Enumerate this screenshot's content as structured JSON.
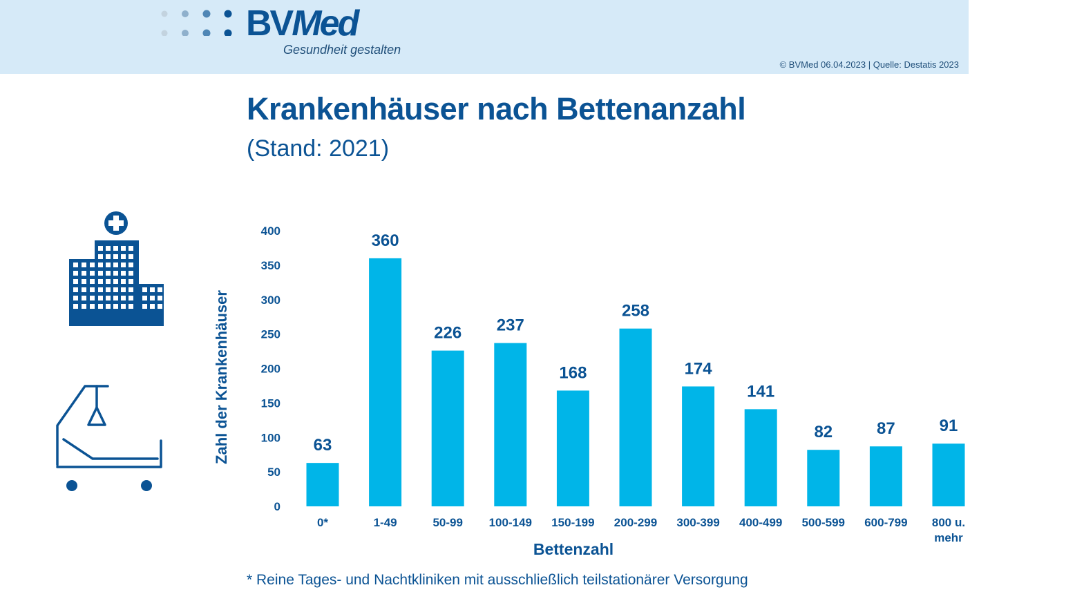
{
  "header": {
    "brand": "BVMed",
    "brand_prefix": "BV",
    "brand_suffix": "Med",
    "tagline": "Gesundheit gestalten",
    "source": "© BVMed 06.04.2023 | Quelle: Destatis 2023"
  },
  "title": "Krankenhäuser nach Bettenanzahl",
  "subtitle": "(Stand: 2021)",
  "icons": [
    "hospital-building-icon",
    "hospital-bed-icon"
  ],
  "colors": {
    "brand_dark": "#0b5394",
    "bar": "#00b5e8",
    "header_bg": "#d6eaf8"
  },
  "footnote": "* Reine Tages- und Nachtkliniken mit ausschließlich teilstationärer Versorgung",
  "chart_data": {
    "type": "bar",
    "title": "Krankenhäuser nach Bettenanzahl",
    "subtitle": "(Stand: 2021)",
    "xlabel": "Bettenzahl",
    "ylabel": "Zahl der Krankenhäuser",
    "categories": [
      "0*",
      "1-49",
      "50-99",
      "100-149",
      "150-199",
      "200-299",
      "300-399",
      "400-499",
      "500-599",
      "600-799",
      "800 u. mehr"
    ],
    "category_lines": [
      [
        "0*"
      ],
      [
        "1-49"
      ],
      [
        "50-99"
      ],
      [
        "100-149"
      ],
      [
        "150-199"
      ],
      [
        "200-299"
      ],
      [
        "300-399"
      ],
      [
        "400-499"
      ],
      [
        "500-599"
      ],
      [
        "600-799"
      ],
      [
        "800 u.",
        "mehr"
      ]
    ],
    "values": [
      63,
      360,
      226,
      237,
      168,
      258,
      174,
      141,
      82,
      87,
      91
    ],
    "data_labels": [
      "63",
      "360",
      "226",
      "237",
      "168",
      "258",
      "174",
      "141",
      "82",
      "87",
      "91"
    ],
    "yticks": [
      0,
      50,
      100,
      150,
      200,
      250,
      300,
      350,
      400
    ],
    "ylim": [
      0,
      400
    ],
    "grid": false,
    "legend": "none"
  }
}
